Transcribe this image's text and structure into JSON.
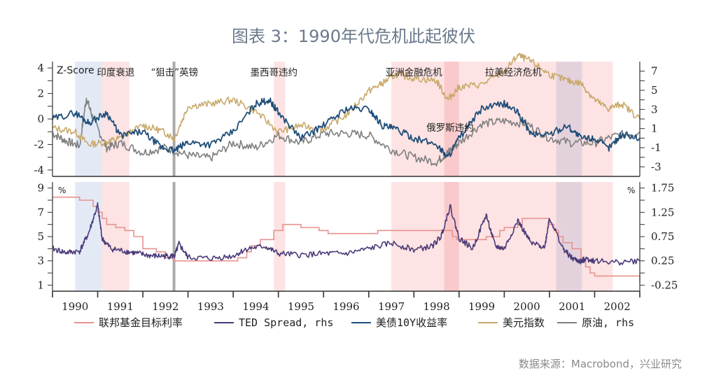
{
  "title": "图表 3：1990年代危机此起彼伏",
  "source": "数据来源：Macrobond，兴业研究",
  "colors": {
    "fed_rate": "#e8928f",
    "ted": "#4b3a78",
    "ust10y": "#1f4e79",
    "dxy": "#c8a96a",
    "oil": "#7f7f7f",
    "band_pink": "#fde3e3",
    "band_pink_dark": "#f9c9cb",
    "band_blue": "#e3eaf6",
    "band_purple": "#e3d2dc",
    "band_grey": "#a9a9a9"
  },
  "chart_data": [
    {
      "type": "line",
      "panel": "top",
      "title": "",
      "ylabel_left": "Z-Score",
      "ylim_left": [
        -4.5,
        4.5
      ],
      "yticks_left": [
        "4",
        "2",
        "0",
        "-2",
        "-4"
      ],
      "ylim_right": [
        -4,
        8
      ],
      "yticks_right": [
        "7",
        "5",
        "3",
        "1",
        "-1",
        "-3"
      ],
      "xlim": [
        1990,
        2003
      ],
      "annotations": [
        {
          "text": "印度衰退",
          "x": 1991.4
        },
        {
          "text": "“狙击”英镑",
          "x": 1992.7
        },
        {
          "text": "墨西哥违约",
          "x": 1994.9
        },
        {
          "text": "亚洲金融危机",
          "x": 1998.0
        },
        {
          "text": "俄罗斯违约",
          "x": 1998.8
        },
        {
          "text": "拉美经济危机",
          "x": 2000.2
        }
      ],
      "series": [
        {
          "name": "美债10Y收益率",
          "x": [
            1990,
            1990.5,
            1990.8,
            1991.2,
            1991.5,
            1992,
            1992.4,
            1992.7,
            1993,
            1993.5,
            1994,
            1994.5,
            1994.8,
            1995,
            1995.5,
            1996,
            1996.5,
            1997,
            1997.3,
            1997.6,
            1998,
            1998.5,
            1998.75,
            1999,
            1999.5,
            2000,
            2000.3,
            2000.6,
            2001,
            2001.4,
            2001.7,
            2002,
            2002.3,
            2002.6,
            2003
          ],
          "values": [
            0,
            0.5,
            -0.3,
            0.5,
            -1.3,
            -1.0,
            -2.2,
            -2.5,
            -1.8,
            -2.0,
            -1.0,
            1.2,
            1.5,
            0.5,
            -1.5,
            -0.5,
            0.8,
            0.8,
            -0.5,
            -0.8,
            -1.5,
            -2.0,
            -3.0,
            -1.5,
            0.8,
            1.2,
            0.5,
            -1.2,
            -1.2,
            -0.5,
            -1.5,
            -1.5,
            -2.3,
            -1.2,
            -1.5
          ]
        },
        {
          "name": "美元指数",
          "x": [
            1990,
            1990.5,
            1990.8,
            1991.2,
            1991.5,
            1992,
            1992.4,
            1992.7,
            1993,
            1993.5,
            1994,
            1994.5,
            1995,
            1995.5,
            1996,
            1996.5,
            1997,
            1997.3,
            1997.6,
            1998,
            1998.5,
            1998.75,
            1999,
            1999.5,
            2000,
            2000.3,
            2000.6,
            2001,
            2001.4,
            2001.7,
            2002,
            2002.3,
            2002.6,
            2003
          ],
          "values": [
            -0.7,
            -1.0,
            -2.0,
            -1.8,
            -1.5,
            -0.5,
            -0.9,
            -1.5,
            1.0,
            1.2,
            1.5,
            0.6,
            -1.0,
            -0.5,
            -0.8,
            0.3,
            2.2,
            2.8,
            3.5,
            3.2,
            3.0,
            1.5,
            2.5,
            2.7,
            3.7,
            5.0,
            4.5,
            3.5,
            3.0,
            2.8,
            1.5,
            0.8,
            1.2,
            0.0
          ]
        },
        {
          "name": "原油，rhs",
          "x": [
            1990,
            1990.3,
            1990.6,
            1990.75,
            1990.9,
            1991.2,
            1991.5,
            1992,
            1992.5,
            1993,
            1993.5,
            1994,
            1994.5,
            1995,
            1995.5,
            1996,
            1996.5,
            1997,
            1997.5,
            1998,
            1998.5,
            1998.75,
            1999,
            1999.5,
            2000,
            2000.5,
            2001,
            2001.5,
            2002,
            2002.5,
            2003
          ],
          "values": [
            0.5,
            -0.3,
            -0.8,
            4.2,
            2.0,
            -1.0,
            -0.5,
            -1.5,
            -1.0,
            -1.8,
            -2.1,
            -0.5,
            -1.0,
            0.3,
            -0.5,
            0.5,
            0.5,
            0.3,
            -1.2,
            -2.0,
            -2.5,
            -1.5,
            -0.5,
            1.5,
            1.8,
            1.5,
            0.0,
            -0.5,
            -0.5,
            0.3,
            0.6
          ]
        }
      ]
    },
    {
      "type": "line",
      "panel": "bottom",
      "ylabel_left": "%",
      "ylabel_right": "%",
      "ylim_left": [
        0.5,
        9.5
      ],
      "yticks_left": [
        "9",
        "7",
        "5",
        "3",
        "1"
      ],
      "ylim_right": [
        -0.375,
        1.875
      ],
      "yticks_right": [
        "1.75",
        "1.25",
        "0.75",
        "0.25",
        "-0.25"
      ],
      "xlim": [
        1990,
        2003
      ],
      "categories": [
        "1990",
        "1991",
        "1992",
        "1993",
        "1994",
        "1995",
        "1996",
        "1997",
        "1998",
        "1999",
        "2000",
        "2001",
        "2002"
      ],
      "series": [
        {
          "name": "联邦基金目标利率",
          "x": [
            1990,
            1990.55,
            1990.6,
            1990.8,
            1990.9,
            1991.0,
            1991.1,
            1991.2,
            1991.4,
            1991.6,
            1991.8,
            1992.0,
            1992.3,
            1992.5,
            1992.7,
            1993,
            1994,
            1994.1,
            1994.3,
            1994.4,
            1994.6,
            1994.9,
            1995.1,
            1995.5,
            1995.9,
            1996.1,
            1997.2,
            1998.75,
            1998.85,
            1998.95,
            1999.5,
            1999.6,
            1999.9,
            2000.0,
            2000.3,
            2000.4,
            2000.9,
            2001.0,
            2001.1,
            2001.2,
            2001.3,
            2001.5,
            2001.7,
            2001.8,
            2001.9,
            2002.0,
            2002.9,
            2003.0
          ],
          "values": [
            8.25,
            8.25,
            8.0,
            8.0,
            7.5,
            7.0,
            6.5,
            6.0,
            5.75,
            5.5,
            5.0,
            4.0,
            3.75,
            3.25,
            3.0,
            3.0,
            3.0,
            3.25,
            3.75,
            4.25,
            4.75,
            5.5,
            6.0,
            5.75,
            5.5,
            5.25,
            5.5,
            5.5,
            5.0,
            4.75,
            4.75,
            5.0,
            5.5,
            5.75,
            6.0,
            6.5,
            6.5,
            6.0,
            5.5,
            5.0,
            4.5,
            4.0,
            3.0,
            2.5,
            2.0,
            1.75,
            1.75,
            1.25
          ]
        },
        {
          "name": "TED Spread, rhs",
          "x": [
            1990,
            1990.3,
            1990.6,
            1990.8,
            1991.0,
            1991.1,
            1991.3,
            1991.6,
            1991.9,
            1992.2,
            1992.5,
            1992.7,
            1992.8,
            1993,
            1993.5,
            1994,
            1994.3,
            1994.7,
            1995,
            1995.5,
            1996,
            1996.5,
            1997,
            1997.5,
            1998,
            1998.4,
            1998.6,
            1998.8,
            1999,
            1999.3,
            1999.6,
            1999.8,
            2000,
            2000.3,
            2000.6,
            2000.9,
            2001.0,
            2001.3,
            2001.5,
            2001.7,
            2001.8,
            2002,
            2002.5,
            2003
          ],
          "values": [
            0.5,
            0.42,
            0.45,
            0.82,
            1.4,
            0.7,
            0.5,
            0.45,
            0.4,
            0.35,
            0.35,
            0.35,
            0.6,
            0.32,
            0.3,
            0.35,
            0.5,
            0.55,
            0.4,
            0.37,
            0.4,
            0.4,
            0.5,
            0.62,
            0.48,
            0.55,
            0.75,
            1.38,
            0.72,
            0.5,
            1.2,
            0.55,
            0.5,
            1.08,
            0.6,
            0.55,
            1.15,
            0.5,
            0.3,
            0.23,
            0.3,
            0.25,
            0.22,
            0.25
          ]
        }
      ]
    }
  ],
  "legend": [
    {
      "label": "联邦基金目标利率",
      "color_key": "fed_rate"
    },
    {
      "label": "TED Spread, rhs",
      "color_key": "ted"
    },
    {
      "label": "美债10Y收益率",
      "color_key": "ust10y"
    },
    {
      "label": "美元指数",
      "color_key": "dxy"
    },
    {
      "label": "原油, rhs",
      "color_key": "oil"
    }
  ],
  "shaded_periods": [
    {
      "start": 1990.5,
      "end": 1991.1,
      "tone": "band_blue"
    },
    {
      "start": 1991.1,
      "end": 1991.7,
      "tone": "band_pink"
    },
    {
      "start": 1992.66,
      "end": 1992.72,
      "tone": "band_grey"
    },
    {
      "start": 1994.9,
      "end": 1995.15,
      "tone": "band_pink"
    },
    {
      "start": 1997.5,
      "end": 1998.67,
      "tone": "band_pink"
    },
    {
      "start": 1998.67,
      "end": 1999.0,
      "tone": "band_pink_dark"
    },
    {
      "start": 1999.0,
      "end": 2002.4,
      "tone": "band_pink"
    },
    {
      "start": 2001.15,
      "end": 2001.72,
      "tone": "band_purple"
    }
  ]
}
